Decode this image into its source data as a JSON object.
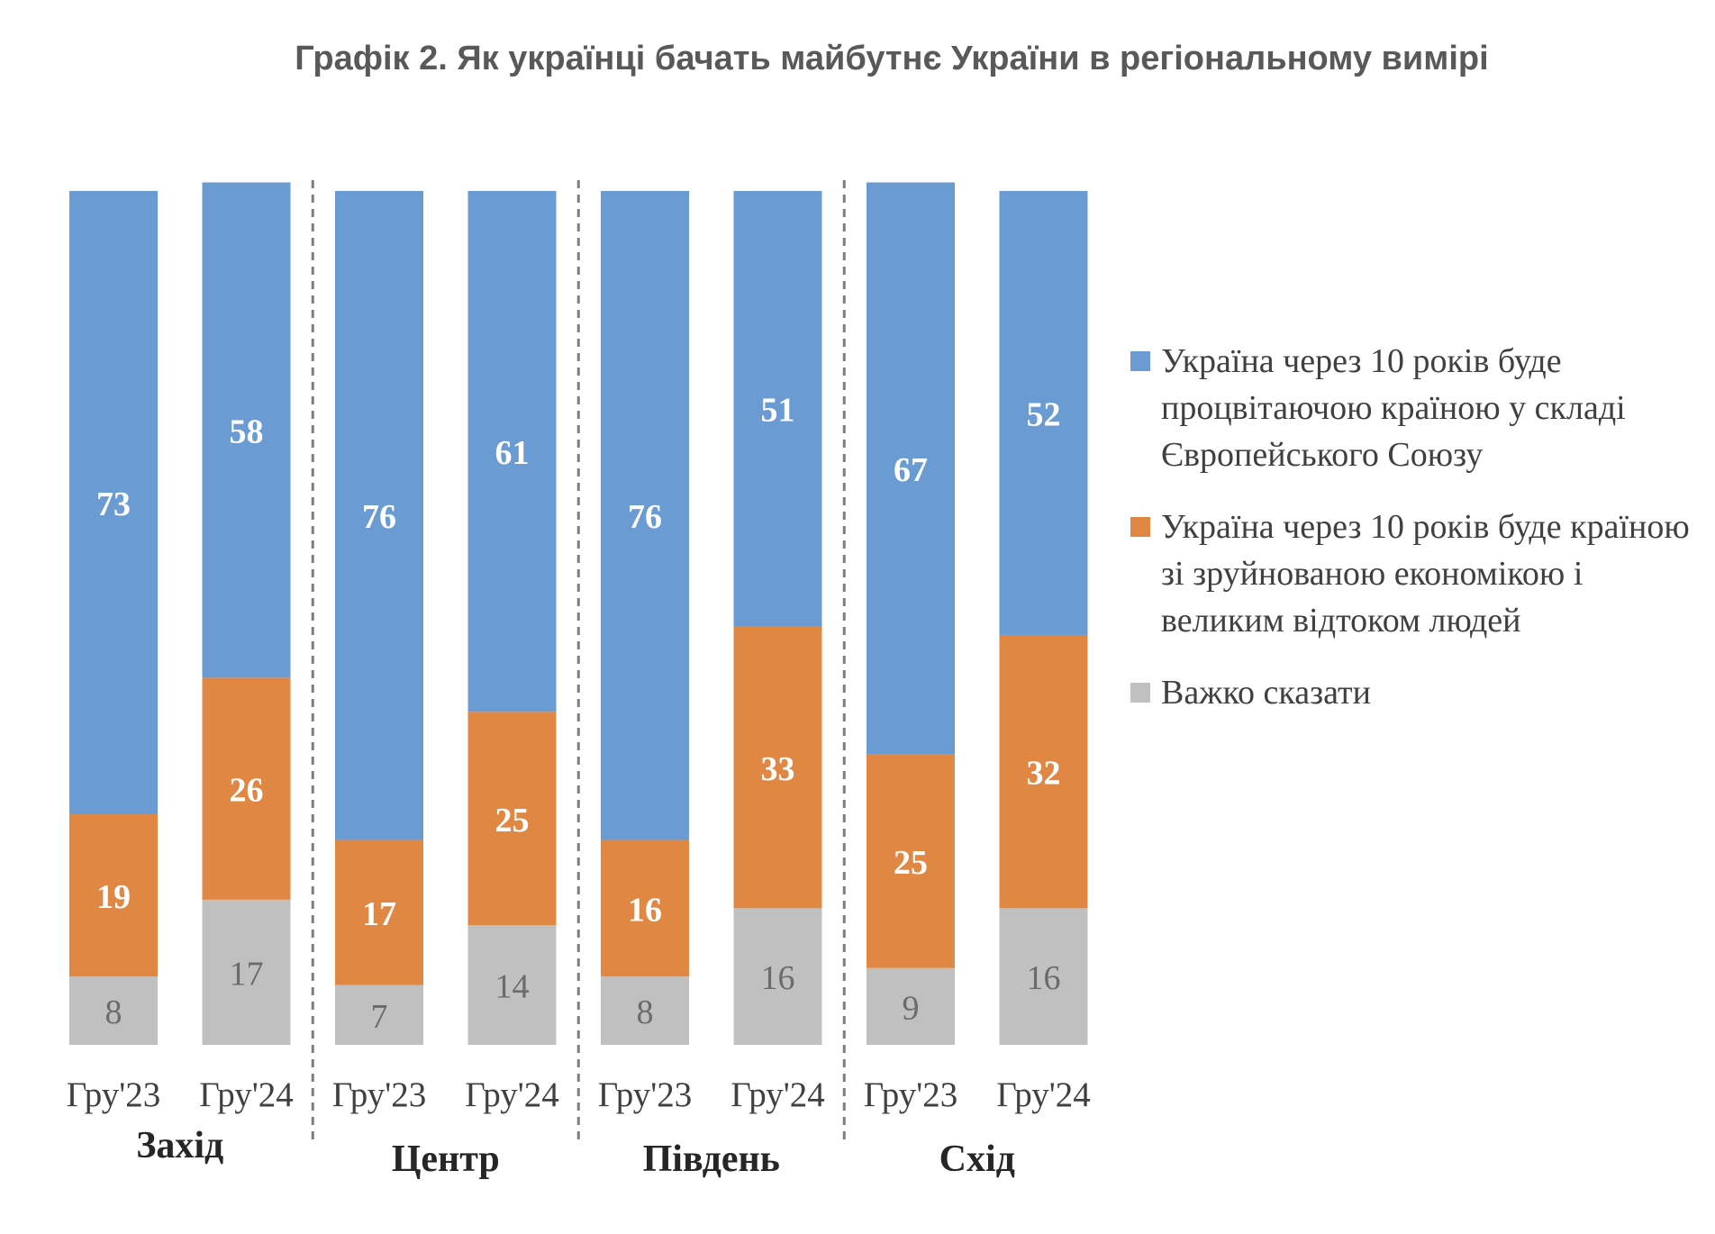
{
  "chart_data": {
    "type": "bar",
    "stacked": true,
    "title": "Графік 2. Як українці бачать майбутнє України в регіональному вимірі",
    "groups": [
      "Захід",
      "Центр",
      "Південь",
      "Схід"
    ],
    "categories": [
      "Гру'23",
      "Гру'24",
      "Гру'23",
      "Гру'24",
      "Гру'23",
      "Гру'24",
      "Гру'23",
      "Гру'24"
    ],
    "series": [
      {
        "name": "Україна через 10 років буде процвітаючою країною у складі Європейського Союзу",
        "color": "#6a9bd2",
        "values": [
          73,
          58,
          76,
          61,
          76,
          51,
          67,
          52
        ]
      },
      {
        "name": "Україна через 10 років буде країною зі зруйнованою економікою і великим відтоком людей",
        "color": "#e08744",
        "values": [
          19,
          26,
          17,
          25,
          16,
          33,
          25,
          32
        ]
      },
      {
        "name": "Важко сказати",
        "color": "#c0c0c0",
        "values": [
          8,
          17,
          7,
          14,
          8,
          16,
          9,
          16
        ]
      }
    ],
    "ylim": [
      0,
      100
    ],
    "legend_position": "right",
    "grid": false
  }
}
